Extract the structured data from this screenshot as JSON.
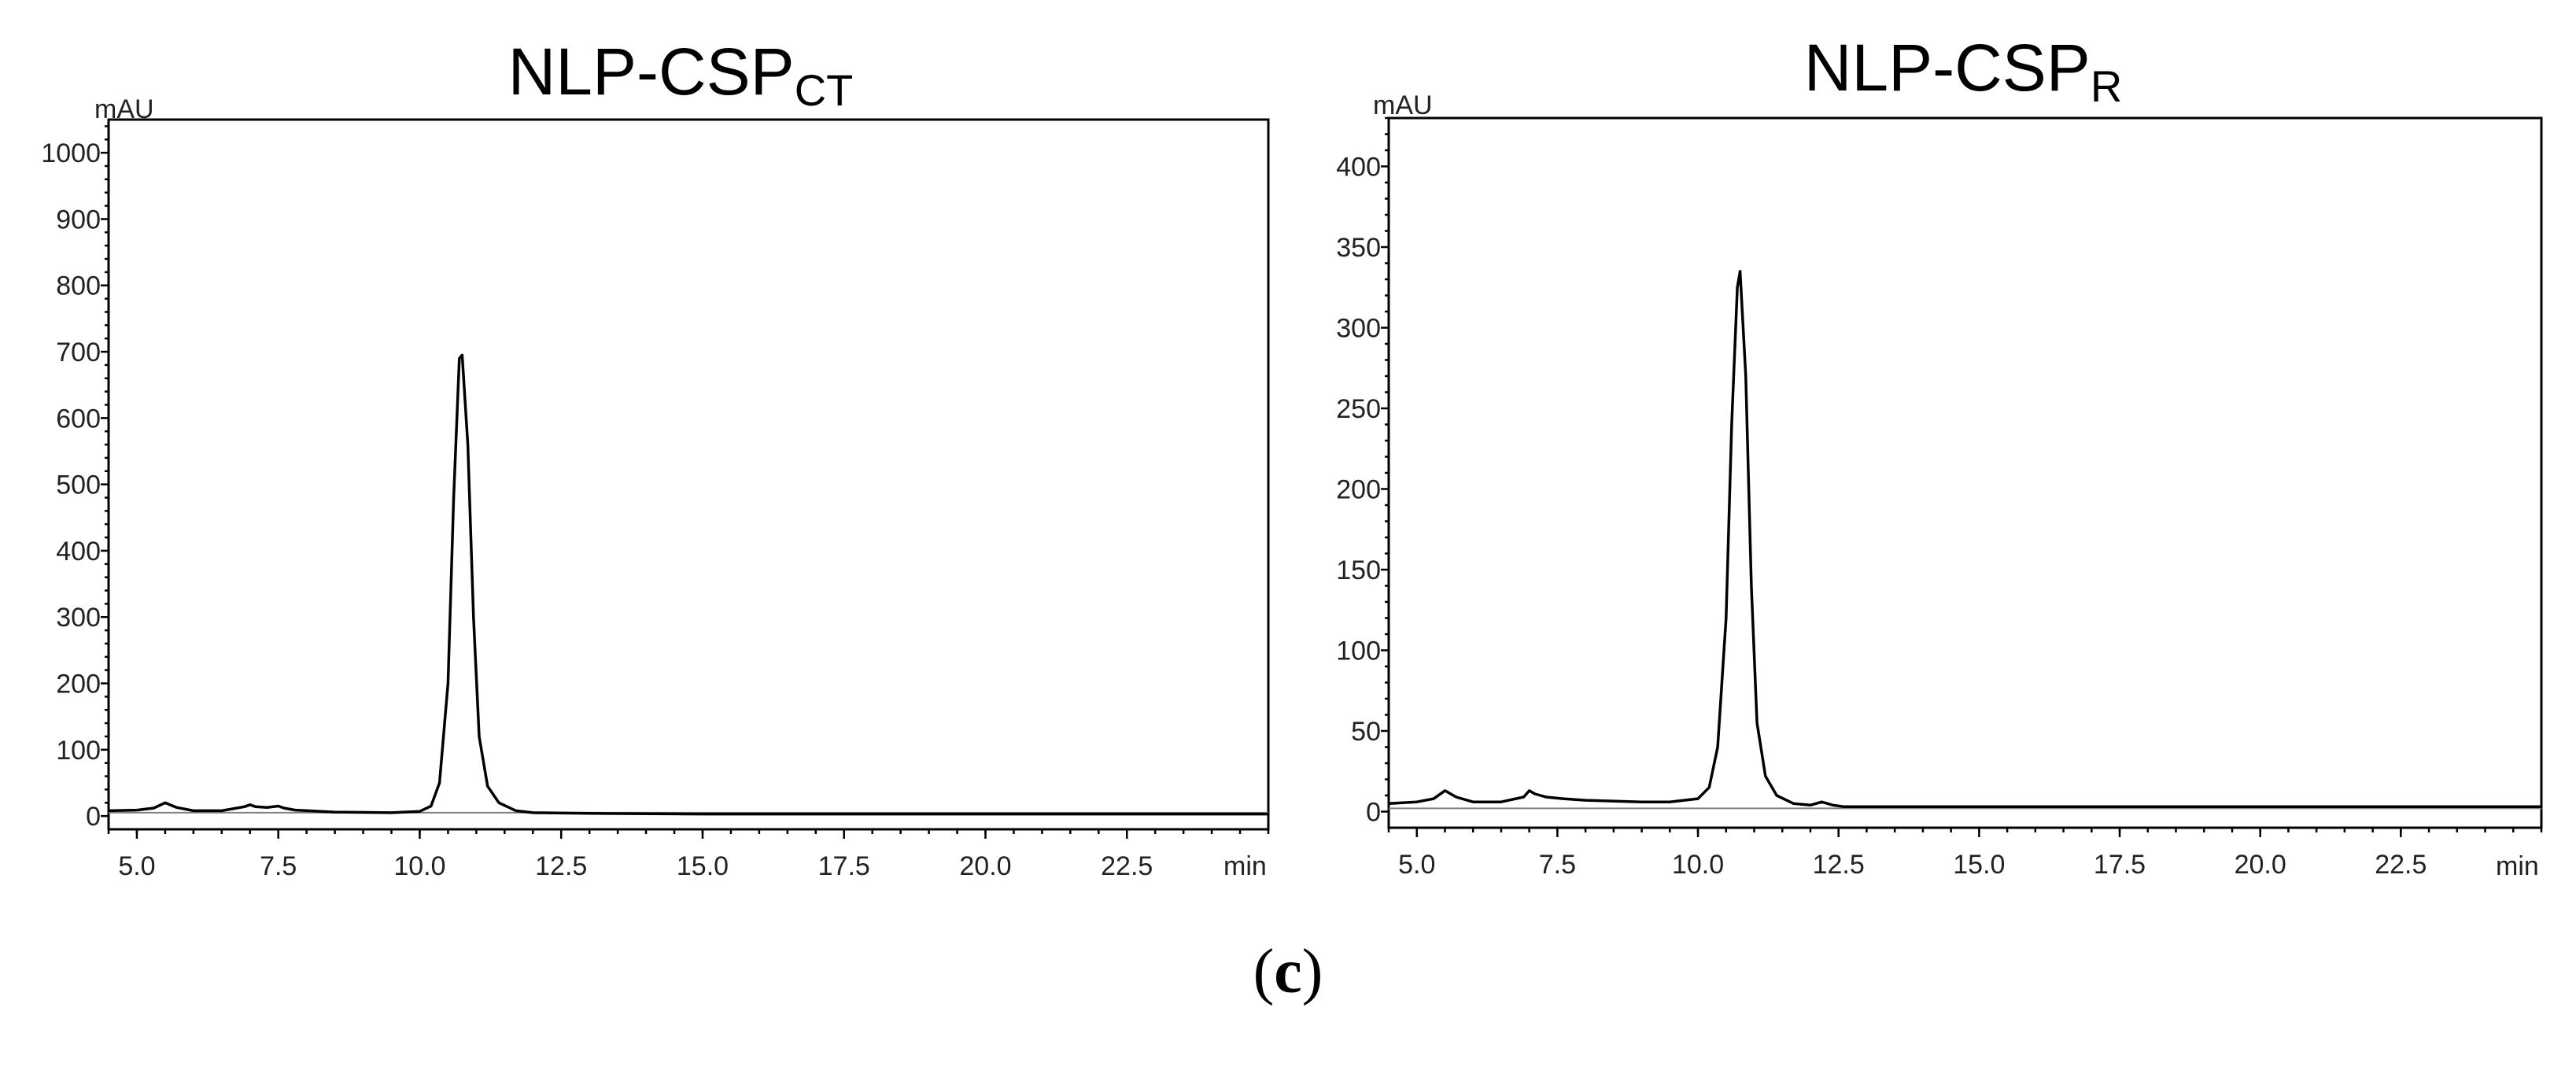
{
  "caption": {
    "open": "(",
    "letter": "c",
    "close": ")"
  },
  "chart_data": [
    {
      "type": "line",
      "title_main": "NLP-CSP",
      "title_sub": "CT",
      "y_unit": "mAU",
      "x_unit": "min",
      "xlim": [
        4.5,
        25.0
      ],
      "ylim": [
        -20,
        1050
      ],
      "x_tick_labels": [
        "5.0",
        "7.5",
        "10.0",
        "12.5",
        "15.0",
        "17.5",
        "20.0",
        "22.5"
      ],
      "x_ticks": [
        5.0,
        7.5,
        10.0,
        12.5,
        15.0,
        17.5,
        20.0,
        22.5
      ],
      "y_tick_labels": [
        "0",
        "100",
        "200",
        "300",
        "400",
        "500",
        "600",
        "700",
        "800",
        "900",
        "1000"
      ],
      "y_ticks": [
        0,
        100,
        200,
        300,
        400,
        500,
        600,
        700,
        800,
        900,
        1000
      ],
      "baseline_level": 5,
      "series": [
        {
          "x": [
            4.5,
            5.0,
            5.3,
            5.5,
            5.7,
            6.0,
            6.5,
            6.9,
            7.0,
            7.1,
            7.3,
            7.5,
            7.6,
            7.8,
            8.5,
            9.5,
            10.0,
            10.2,
            10.35,
            10.5,
            10.6,
            10.7,
            10.75,
            10.85,
            10.95,
            11.05,
            11.2,
            11.4,
            11.7,
            12.0,
            13.0,
            15.0,
            17.5,
            20.0,
            22.5,
            25.0
          ],
          "y": [
            8,
            9,
            12,
            20,
            13,
            8,
            8,
            14,
            17,
            14,
            13,
            15,
            12,
            9,
            6,
            5,
            7,
            15,
            50,
            200,
            480,
            690,
            695,
            560,
            300,
            120,
            45,
            20,
            8,
            5,
            4,
            3,
            3,
            3,
            3,
            3
          ]
        }
      ]
    },
    {
      "type": "line",
      "title_main": "NLP-CSP",
      "title_sub": "R",
      "y_unit": "mAU",
      "x_unit": "min",
      "xlim": [
        4.5,
        25.0
      ],
      "ylim": [
        -10,
        430
      ],
      "x_tick_labels": [
        "5.0",
        "7.5",
        "10.0",
        "12.5",
        "15.0",
        "17.5",
        "20.0",
        "22.5"
      ],
      "x_ticks": [
        5.0,
        7.5,
        10.0,
        12.5,
        15.0,
        17.5,
        20.0,
        22.5
      ],
      "y_tick_labels": [
        "0",
        "50",
        "100",
        "150",
        "200",
        "250",
        "300",
        "350",
        "400"
      ],
      "y_ticks": [
        0,
        50,
        100,
        150,
        200,
        250,
        300,
        350,
        400
      ],
      "baseline_level": 2,
      "series": [
        {
          "x": [
            4.5,
            5.0,
            5.3,
            5.5,
            5.7,
            6.0,
            6.5,
            6.9,
            7.0,
            7.1,
            7.3,
            7.6,
            8.0,
            9.0,
            9.5,
            10.0,
            10.2,
            10.35,
            10.5,
            10.6,
            10.7,
            10.75,
            10.85,
            10.95,
            11.05,
            11.2,
            11.4,
            11.7,
            12.0,
            12.2,
            12.4,
            12.6,
            13.0,
            15.0,
            17.5,
            20.0,
            21.0,
            22.5,
            25.0
          ],
          "y": [
            5,
            6,
            8,
            13,
            9,
            6,
            6,
            9,
            13,
            11,
            9,
            8,
            7,
            6,
            6,
            8,
            15,
            40,
            120,
            240,
            325,
            335,
            270,
            140,
            55,
            22,
            10,
            5,
            4,
            6,
            4,
            3,
            3,
            3,
            3,
            3,
            3,
            3,
            3
          ]
        }
      ]
    }
  ]
}
